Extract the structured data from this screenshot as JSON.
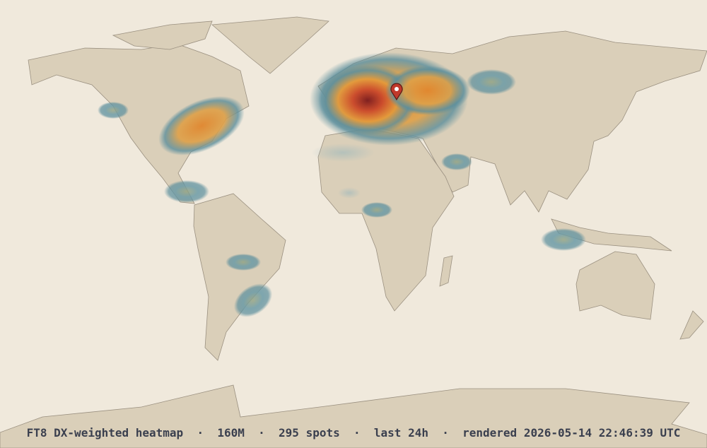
{
  "caption": "FT8 DX-weighted heatmap  ·  160M  ·  295 spots  ·  last 24h  ·  rendered 2026-05-14 22:46:39 UTC"
}
